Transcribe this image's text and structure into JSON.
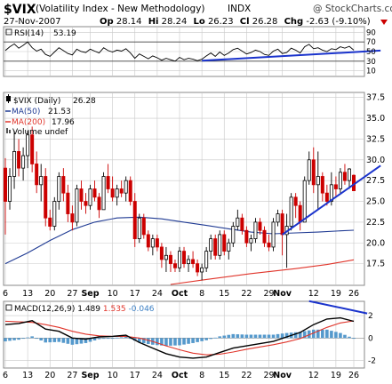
{
  "header": {
    "symbol": "$VIX",
    "name": "(Volatility Index - New Methodology)",
    "exchange": "INDX",
    "copyright": "@ StockCharts.com",
    "date": "27-Nov-2007",
    "quote": [
      {
        "label": "Op",
        "value": "28.14"
      },
      {
        "label": "Hi",
        "value": "28.24"
      },
      {
        "label": "Lo",
        "value": "26.23"
      },
      {
        "label": "Cl",
        "value": "26.28"
      },
      {
        "label": "Chg",
        "value": "-2.63 (-9.10%)"
      }
    ],
    "change_arrow": "down-arrow-icon"
  },
  "colors": {
    "up_candle": "#000000",
    "down_candle": "#cc0000",
    "ma50": "#1f3a93",
    "ma200": "#e0342a",
    "trendline": "#1a33cc",
    "macd_line": "#000000",
    "signal_line": "#e0342a",
    "histogram": "#5599cc",
    "grid": "#c8c8c8"
  },
  "legend": {
    "rsi": {
      "label": "RSI(14)",
      "value": "53.19"
    },
    "price": [
      {
        "label": "$VIX (Daily)",
        "value": "26.28",
        "marker": "candle-icon",
        "color": "#000000"
      },
      {
        "label": "MA(50)",
        "value": "21.53",
        "color": "#1f3a93"
      },
      {
        "label": "MA(200)",
        "value": "17.96",
        "color": "#e0342a"
      },
      {
        "label": "Volume undef",
        "value": "",
        "marker": "bar-icon",
        "color": "#555555"
      }
    ],
    "macd": {
      "label": "MACD(12,26,9)",
      "macd": "1.489",
      "signal": "1.535",
      "hist": "-0.046"
    }
  },
  "chart_data": {
    "type": "candlestick",
    "x_axis": {
      "tick_labels": [
        {
          "text": "6",
          "day": 0
        },
        {
          "text": "13",
          "day": 5
        },
        {
          "text": "20",
          "day": 10
        },
        {
          "text": "27",
          "day": 15
        },
        {
          "text": "Sep",
          "day": 19,
          "bold": true
        },
        {
          "text": "10",
          "day": 24
        },
        {
          "text": "17",
          "day": 29
        },
        {
          "text": "24",
          "day": 34
        },
        {
          "text": "Oct",
          "day": 39,
          "bold": true
        },
        {
          "text": "8",
          "day": 44
        },
        {
          "text": "15",
          "day": 49
        },
        {
          "text": "22",
          "day": 54
        },
        {
          "text": "29",
          "day": 59
        },
        {
          "text": "Nov",
          "day": 62,
          "bold": true
        },
        {
          "text": "12",
          "day": 69
        },
        {
          "text": "19",
          "day": 74
        },
        {
          "text": "26",
          "day": 78
        }
      ]
    },
    "price_panel": {
      "ylim": [
        15.0,
        38.0
      ],
      "y_ticks": [
        17.5,
        20.0,
        22.5,
        25.0,
        27.5,
        30.0,
        32.5,
        35.0,
        37.5
      ],
      "y_tick_labels": [
        "17.5",
        "20.0",
        "22.5",
        "25.0",
        "27.5",
        "30.0",
        "32.5",
        "35.0",
        "37.5"
      ],
      "ohlc": [
        {
          "d": 0,
          "o": 29.0,
          "h": 30.2,
          "l": 21.0,
          "c": 25.0
        },
        {
          "d": 1,
          "o": 25.0,
          "h": 29.0,
          "l": 24.0,
          "c": 28.0
        },
        {
          "d": 2,
          "o": 28.0,
          "h": 33.5,
          "l": 26.5,
          "c": 31.0
        },
        {
          "d": 3,
          "o": 31.0,
          "h": 32.5,
          "l": 28.0,
          "c": 29.0
        },
        {
          "d": 4,
          "o": 29.0,
          "h": 31.5,
          "l": 27.5,
          "c": 30.5
        },
        {
          "d": 5,
          "o": 30.5,
          "h": 33.5,
          "l": 29.0,
          "c": 33.0
        },
        {
          "d": 6,
          "o": 33.0,
          "h": 34.0,
          "l": 28.5,
          "c": 29.5
        },
        {
          "d": 7,
          "o": 29.5,
          "h": 31.0,
          "l": 26.0,
          "c": 27.0
        },
        {
          "d": 8,
          "o": 27.0,
          "h": 29.5,
          "l": 25.0,
          "c": 28.0
        },
        {
          "d": 9,
          "o": 28.0,
          "h": 29.0,
          "l": 22.0,
          "c": 23.0
        },
        {
          "d": 10,
          "o": 23.0,
          "h": 24.0,
          "l": 21.5,
          "c": 22.0
        },
        {
          "d": 11,
          "o": 22.0,
          "h": 25.5,
          "l": 21.5,
          "c": 25.0
        },
        {
          "d": 12,
          "o": 25.0,
          "h": 28.5,
          "l": 24.0,
          "c": 28.0
        },
        {
          "d": 13,
          "o": 28.0,
          "h": 29.0,
          "l": 25.0,
          "c": 26.0
        },
        {
          "d": 14,
          "o": 26.0,
          "h": 27.0,
          "l": 22.5,
          "c": 23.5
        },
        {
          "d": 15,
          "o": 23.5,
          "h": 24.5,
          "l": 21.5,
          "c": 22.5
        },
        {
          "d": 16,
          "o": 22.5,
          "h": 27.0,
          "l": 22.0,
          "c": 26.5
        },
        {
          "d": 17,
          "o": 26.5,
          "h": 27.5,
          "l": 24.0,
          "c": 25.0
        },
        {
          "d": 18,
          "o": 25.0,
          "h": 26.0,
          "l": 23.5,
          "c": 24.5
        },
        {
          "d": 19,
          "o": 24.5,
          "h": 27.0,
          "l": 24.0,
          "c": 26.5
        },
        {
          "d": 20,
          "o": 26.5,
          "h": 27.5,
          "l": 25.0,
          "c": 25.5
        },
        {
          "d": 21,
          "o": 25.5,
          "h": 26.0,
          "l": 23.0,
          "c": 24.0
        },
        {
          "d": 22,
          "o": 24.0,
          "h": 28.5,
          "l": 24.0,
          "c": 28.0
        },
        {
          "d": 23,
          "o": 28.0,
          "h": 29.5,
          "l": 26.0,
          "c": 26.5
        },
        {
          "d": 24,
          "o": 26.5,
          "h": 28.0,
          "l": 25.0,
          "c": 25.5
        },
        {
          "d": 25,
          "o": 25.5,
          "h": 27.0,
          "l": 24.5,
          "c": 26.5
        },
        {
          "d": 26,
          "o": 26.5,
          "h": 27.5,
          "l": 25.5,
          "c": 26.0
        },
        {
          "d": 27,
          "o": 26.0,
          "h": 28.0,
          "l": 25.0,
          "c": 27.5
        },
        {
          "d": 28,
          "o": 27.5,
          "h": 28.0,
          "l": 24.5,
          "c": 25.0
        },
        {
          "d": 29,
          "o": 25.0,
          "h": 26.0,
          "l": 19.5,
          "c": 20.5
        },
        {
          "d": 30,
          "o": 20.5,
          "h": 23.5,
          "l": 20.0,
          "c": 23.0
        },
        {
          "d": 31,
          "o": 23.0,
          "h": 23.5,
          "l": 20.5,
          "c": 21.0
        },
        {
          "d": 32,
          "o": 21.0,
          "h": 21.5,
          "l": 19.0,
          "c": 19.5
        },
        {
          "d": 33,
          "o": 19.5,
          "h": 21.0,
          "l": 18.5,
          "c": 20.5
        },
        {
          "d": 34,
          "o": 20.5,
          "h": 21.0,
          "l": 19.0,
          "c": 19.5
        },
        {
          "d": 35,
          "o": 19.5,
          "h": 20.0,
          "l": 17.0,
          "c": 18.0
        },
        {
          "d": 36,
          "o": 18.0,
          "h": 19.5,
          "l": 16.5,
          "c": 18.5
        },
        {
          "d": 37,
          "o": 18.5,
          "h": 19.0,
          "l": 16.5,
          "c": 17.5
        },
        {
          "d": 38,
          "o": 17.5,
          "h": 18.0,
          "l": 16.5,
          "c": 17.0
        },
        {
          "d": 39,
          "o": 17.0,
          "h": 19.5,
          "l": 16.5,
          "c": 19.0
        },
        {
          "d": 40,
          "o": 19.0,
          "h": 19.5,
          "l": 17.0,
          "c": 17.5
        },
        {
          "d": 41,
          "o": 17.5,
          "h": 18.5,
          "l": 16.5,
          "c": 18.0
        },
        {
          "d": 42,
          "o": 18.0,
          "h": 19.0,
          "l": 17.0,
          "c": 17.5
        },
        {
          "d": 43,
          "o": 17.5,
          "h": 18.0,
          "l": 16.0,
          "c": 16.5
        },
        {
          "d": 44,
          "o": 16.5,
          "h": 17.5,
          "l": 15.5,
          "c": 17.0
        },
        {
          "d": 45,
          "o": 17.0,
          "h": 19.5,
          "l": 16.5,
          "c": 19.0
        },
        {
          "d": 46,
          "o": 19.0,
          "h": 21.0,
          "l": 18.0,
          "c": 20.5
        },
        {
          "d": 47,
          "o": 20.5,
          "h": 21.0,
          "l": 18.0,
          "c": 18.5
        },
        {
          "d": 48,
          "o": 18.5,
          "h": 21.5,
          "l": 18.0,
          "c": 21.0
        },
        {
          "d": 49,
          "o": 21.0,
          "h": 21.5,
          "l": 18.5,
          "c": 19.0
        },
        {
          "d": 50,
          "o": 19.0,
          "h": 20.5,
          "l": 18.0,
          "c": 20.0
        },
        {
          "d": 51,
          "o": 20.0,
          "h": 22.5,
          "l": 19.5,
          "c": 22.0
        },
        {
          "d": 52,
          "o": 22.0,
          "h": 24.0,
          "l": 21.5,
          "c": 23.0
        },
        {
          "d": 53,
          "o": 23.0,
          "h": 23.5,
          "l": 21.0,
          "c": 21.5
        },
        {
          "d": 54,
          "o": 21.5,
          "h": 22.0,
          "l": 19.5,
          "c": 20.0
        },
        {
          "d": 55,
          "o": 20.0,
          "h": 21.0,
          "l": 19.0,
          "c": 20.5
        },
        {
          "d": 56,
          "o": 20.5,
          "h": 23.0,
          "l": 20.0,
          "c": 22.5
        },
        {
          "d": 57,
          "o": 22.5,
          "h": 23.0,
          "l": 21.0,
          "c": 21.5
        },
        {
          "d": 58,
          "o": 21.5,
          "h": 22.0,
          "l": 19.5,
          "c": 20.0
        },
        {
          "d": 59,
          "o": 20.0,
          "h": 21.0,
          "l": 19.0,
          "c": 19.5
        },
        {
          "d": 60,
          "o": 19.5,
          "h": 23.0,
          "l": 19.0,
          "c": 22.5
        },
        {
          "d": 61,
          "o": 22.5,
          "h": 24.0,
          "l": 22.0,
          "c": 23.5
        },
        {
          "d": 62,
          "o": 23.5,
          "h": 24.0,
          "l": 18.5,
          "c": 21.0
        },
        {
          "d": 63,
          "o": 21.0,
          "h": 23.5,
          "l": 17.0,
          "c": 22.0
        },
        {
          "d": 64,
          "o": 22.0,
          "h": 26.0,
          "l": 21.5,
          "c": 25.5
        },
        {
          "d": 65,
          "o": 25.5,
          "h": 26.0,
          "l": 23.0,
          "c": 24.5
        },
        {
          "d": 66,
          "o": 24.5,
          "h": 25.0,
          "l": 21.5,
          "c": 22.5
        },
        {
          "d": 67,
          "o": 22.5,
          "h": 28.0,
          "l": 22.5,
          "c": 27.5
        },
        {
          "d": 68,
          "o": 27.5,
          "h": 31.0,
          "l": 27.0,
          "c": 30.0
        },
        {
          "d": 69,
          "o": 30.0,
          "h": 31.5,
          "l": 26.0,
          "c": 27.0
        },
        {
          "d": 70,
          "o": 27.0,
          "h": 31.0,
          "l": 24.0,
          "c": 28.0
        },
        {
          "d": 71,
          "o": 28.0,
          "h": 28.5,
          "l": 25.0,
          "c": 26.0
        },
        {
          "d": 72,
          "o": 26.0,
          "h": 27.0,
          "l": 24.5,
          "c": 25.0
        },
        {
          "d": 73,
          "o": 25.0,
          "h": 28.5,
          "l": 24.5,
          "c": 27.0
        },
        {
          "d": 74,
          "o": 27.0,
          "h": 28.0,
          "l": 25.5,
          "c": 26.5
        },
        {
          "d": 75,
          "o": 26.5,
          "h": 29.0,
          "l": 26.0,
          "c": 28.5
        },
        {
          "d": 76,
          "o": 28.5,
          "h": 29.5,
          "l": 27.0,
          "c": 27.5
        },
        {
          "d": 77,
          "o": 27.5,
          "h": 29.0,
          "l": 26.5,
          "c": 28.9
        },
        {
          "d": 78,
          "o": 28.14,
          "h": 28.24,
          "l": 26.23,
          "c": 26.28
        }
      ],
      "ma50": [
        {
          "d": 0,
          "v": 17.5
        },
        {
          "d": 5,
          "v": 18.8
        },
        {
          "d": 10,
          "v": 20.3
        },
        {
          "d": 15,
          "v": 21.6
        },
        {
          "d": 20,
          "v": 22.5
        },
        {
          "d": 25,
          "v": 23.0
        },
        {
          "d": 30,
          "v": 23.1
        },
        {
          "d": 35,
          "v": 22.9
        },
        {
          "d": 40,
          "v": 22.5
        },
        {
          "d": 45,
          "v": 22.1
        },
        {
          "d": 50,
          "v": 21.7
        },
        {
          "d": 55,
          "v": 21.3
        },
        {
          "d": 60,
          "v": 21.1
        },
        {
          "d": 65,
          "v": 21.2
        },
        {
          "d": 70,
          "v": 21.3
        },
        {
          "d": 75,
          "v": 21.45
        },
        {
          "d": 78,
          "v": 21.53
        }
      ],
      "ma200": [
        {
          "d": 37,
          "v": 15.0
        },
        {
          "d": 45,
          "v": 15.6
        },
        {
          "d": 55,
          "v": 16.3
        },
        {
          "d": 65,
          "v": 16.9
        },
        {
          "d": 72,
          "v": 17.4
        },
        {
          "d": 78,
          "v": 17.96
        }
      ],
      "trendline": [
        {
          "d": 62,
          "v": 21.0
        },
        {
          "d": 84,
          "v": 29.3
        }
      ]
    },
    "rsi_panel": {
      "ylim": [
        0,
        100
      ],
      "y_ticks": [
        10,
        30,
        50,
        70,
        90
      ],
      "y_tick_labels": [
        "10",
        "30",
        "50",
        "70",
        "90"
      ],
      "ref_lines": [
        30,
        70
      ],
      "values": [
        52,
        60,
        66,
        57,
        63,
        70,
        58,
        51,
        55,
        44,
        40,
        49,
        58,
        52,
        46,
        43,
        55,
        50,
        48,
        55,
        51,
        47,
        58,
        52,
        49,
        53,
        51,
        56,
        47,
        36,
        45,
        40,
        35,
        41,
        37,
        32,
        36,
        33,
        30,
        38,
        33,
        36,
        34,
        31,
        34,
        41,
        47,
        40,
        49,
        42,
        47,
        54,
        57,
        51,
        45,
        48,
        53,
        50,
        44,
        42,
        51,
        55,
        46,
        48,
        57,
        53,
        47,
        60,
        65,
        56,
        58,
        53,
        50,
        56,
        54,
        60,
        57,
        61,
        53
      ],
      "trendline": [
        {
          "d": 44,
          "v": 31
        },
        {
          "d": 84,
          "v": 52
        }
      ]
    },
    "macd_panel": {
      "ylim": [
        -2.6,
        3.2
      ],
      "y_ticks": [
        -2,
        0,
        2
      ],
      "y_tick_labels": [
        "-2",
        "0",
        "2"
      ],
      "macd": [
        {
          "d": 0,
          "v": 1.2
        },
        {
          "d": 3,
          "v": 1.3
        },
        {
          "d": 6,
          "v": 1.55
        },
        {
          "d": 9,
          "v": 0.8
        },
        {
          "d": 12,
          "v": 0.6
        },
        {
          "d": 15,
          "v": 0.0
        },
        {
          "d": 18,
          "v": -0.1
        },
        {
          "d": 21,
          "v": 0.1
        },
        {
          "d": 24,
          "v": 0.15
        },
        {
          "d": 27,
          "v": 0.25
        },
        {
          "d": 30,
          "v": -0.4
        },
        {
          "d": 33,
          "v": -0.9
        },
        {
          "d": 36,
          "v": -1.4
        },
        {
          "d": 39,
          "v": -1.7
        },
        {
          "d": 42,
          "v": -1.8
        },
        {
          "d": 45,
          "v": -1.7
        },
        {
          "d": 48,
          "v": -1.3
        },
        {
          "d": 51,
          "v": -0.9
        },
        {
          "d": 54,
          "v": -0.7
        },
        {
          "d": 57,
          "v": -0.5
        },
        {
          "d": 60,
          "v": -0.3
        },
        {
          "d": 63,
          "v": 0.1
        },
        {
          "d": 66,
          "v": 0.5
        },
        {
          "d": 69,
          "v": 1.2
        },
        {
          "d": 72,
          "v": 1.7
        },
        {
          "d": 75,
          "v": 1.8
        },
        {
          "d": 78,
          "v": 1.489
        }
      ],
      "signal": [
        {
          "d": 0,
          "v": 1.5
        },
        {
          "d": 3,
          "v": 1.45
        },
        {
          "d": 6,
          "v": 1.4
        },
        {
          "d": 9,
          "v": 1.2
        },
        {
          "d": 12,
          "v": 0.95
        },
        {
          "d": 15,
          "v": 0.6
        },
        {
          "d": 18,
          "v": 0.35
        },
        {
          "d": 21,
          "v": 0.2
        },
        {
          "d": 24,
          "v": 0.15
        },
        {
          "d": 27,
          "v": 0.15
        },
        {
          "d": 30,
          "v": 0.0
        },
        {
          "d": 33,
          "v": -0.3
        },
        {
          "d": 36,
          "v": -0.7
        },
        {
          "d": 39,
          "v": -1.05
        },
        {
          "d": 42,
          "v": -1.35
        },
        {
          "d": 45,
          "v": -1.5
        },
        {
          "d": 48,
          "v": -1.45
        },
        {
          "d": 51,
          "v": -1.25
        },
        {
          "d": 54,
          "v": -1.0
        },
        {
          "d": 57,
          "v": -0.8
        },
        {
          "d": 60,
          "v": -0.6
        },
        {
          "d": 63,
          "v": -0.35
        },
        {
          "d": 66,
          "v": -0.05
        },
        {
          "d": 69,
          "v": 0.45
        },
        {
          "d": 72,
          "v": 0.95
        },
        {
          "d": 75,
          "v": 1.35
        },
        {
          "d": 78,
          "v": 1.535
        }
      ],
      "trendline": [
        {
          "d": 68,
          "v": 3.3
        },
        {
          "d": 81,
          "v": 2.2
        }
      ]
    }
  }
}
